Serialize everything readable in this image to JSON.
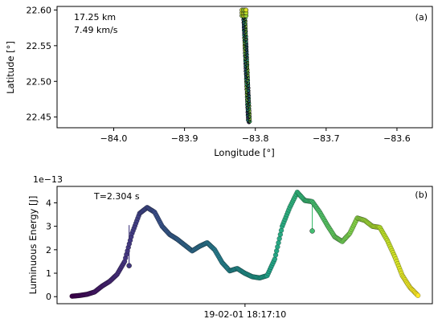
{
  "chart_data": [
    {
      "type": "scatter",
      "panel_label": "(a)",
      "xlabel": "Longitude [°]",
      "ylabel": "Latitude [°]",
      "xlim": [
        -84.08,
        -83.55
      ],
      "ylim": [
        22.435,
        22.605
      ],
      "xticks": [
        -84.0,
        -83.9,
        -83.8,
        -83.7,
        -83.6
      ],
      "xtick_labels": [
        "−84.0",
        "−83.9",
        "−83.8",
        "−83.7",
        "−83.6"
      ],
      "yticks": [
        22.45,
        22.5,
        22.55,
        22.6
      ],
      "ytick_labels": [
        "22.45",
        "22.50",
        "22.55",
        "22.60"
      ],
      "annotations": [
        "17.25 km",
        "7.49 km/s"
      ],
      "colormap": "viridis",
      "track": {
        "lon_start": -83.809,
        "lat_start": 22.443,
        "lon_end": -83.816,
        "lat_end": 22.598
      },
      "grid": false
    },
    {
      "type": "line",
      "panel_label": "(b)",
      "ylabel": "Luminuous Energy [J]",
      "scale_label": "1e−13",
      "annotation": "T=2.304 s",
      "xtick_labels": [
        "19-02-01 18:17:10"
      ],
      "x_range_s": [
        0,
        2.304
      ],
      "xlim": [
        -0.1,
        2.4
      ],
      "ylim": [
        -0.3,
        4.7
      ],
      "yticks": [
        0,
        1,
        2,
        3,
        4
      ],
      "ytick_labels": [
        "0",
        "1",
        "2",
        "3",
        "4"
      ],
      "colormap": "viridis",
      "grid": false,
      "series": [
        {
          "x": [
            0.0,
            0.05,
            0.1,
            0.15,
            0.2,
            0.25,
            0.3,
            0.35,
            0.4,
            0.45,
            0.5,
            0.55,
            0.6,
            0.65,
            0.7,
            0.75,
            0.8,
            0.85,
            0.9,
            0.95,
            1.0,
            1.05,
            1.1,
            1.15,
            1.2,
            1.25,
            1.3,
            1.35,
            1.4,
            1.45,
            1.5,
            1.55,
            1.6,
            1.65,
            1.7,
            1.75,
            1.8,
            1.85,
            1.9,
            1.95,
            2.0,
            2.05,
            2.1,
            2.15,
            2.2,
            2.25,
            2.304
          ],
          "values": [
            0.02,
            0.05,
            0.1,
            0.2,
            0.45,
            0.65,
            0.95,
            1.5,
            2.7,
            3.55,
            3.8,
            3.6,
            3.0,
            2.65,
            2.45,
            2.2,
            1.95,
            2.15,
            2.3,
            2.0,
            1.45,
            1.1,
            1.2,
            1.0,
            0.85,
            0.8,
            0.9,
            1.6,
            3.0,
            3.8,
            4.45,
            4.1,
            4.05,
            3.6,
            3.05,
            2.55,
            2.35,
            2.7,
            3.35,
            3.25,
            3.0,
            2.95,
            2.4,
            1.7,
            0.9,
            0.4,
            0.05
          ]
        }
      ],
      "outliers": [
        {
          "x": 0.38,
          "from": 3.05,
          "to": 1.32
        },
        {
          "x": 1.6,
          "from": 4.05,
          "to": 2.8
        }
      ]
    }
  ]
}
